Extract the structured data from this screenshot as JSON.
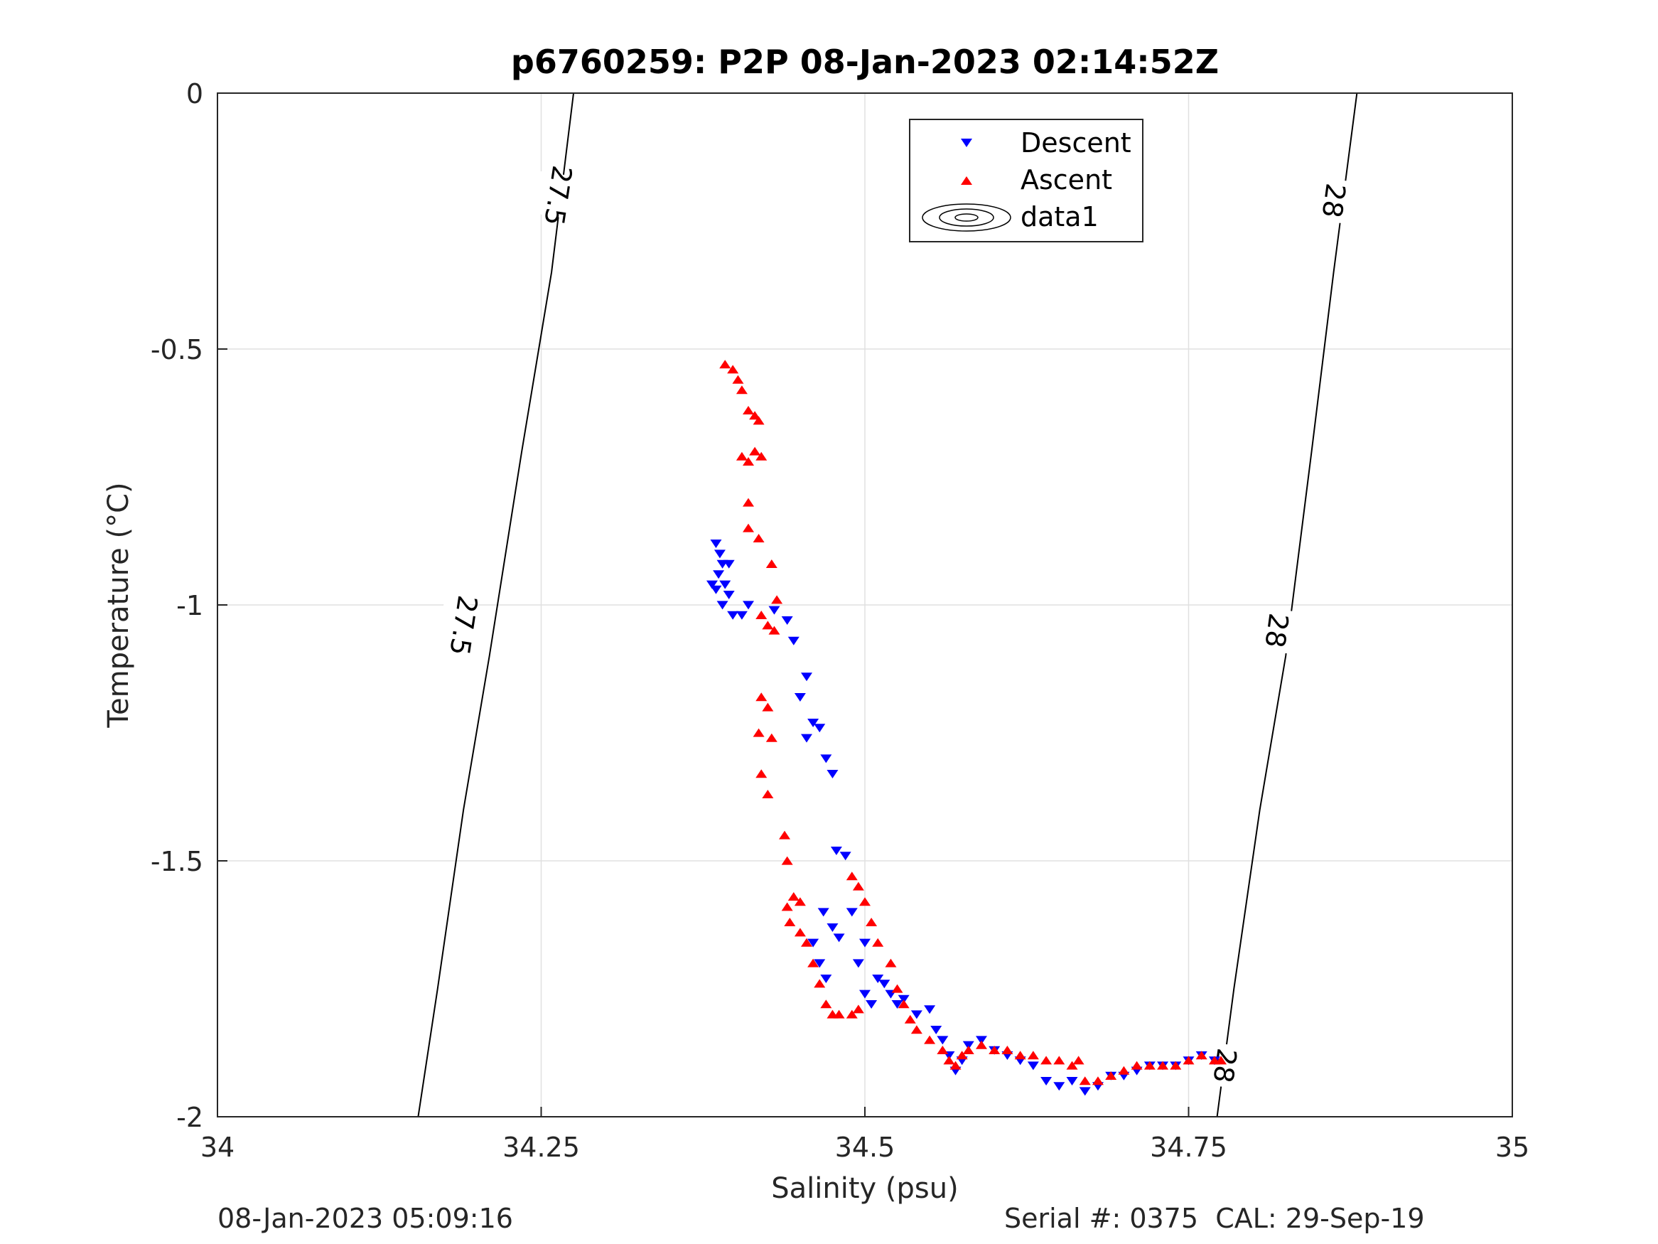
{
  "footer": {
    "left": "08-Jan-2023 05:09:16",
    "right": "Serial #: 0375  CAL: 29-Sep-19"
  },
  "chart_data": {
    "type": "scatter",
    "title": "p6760259: P2P 08-Jan-2023 02:14:52Z",
    "xlabel": "Salinity (psu)",
    "ylabel": "Temperature (°C)",
    "xlim": [
      34,
      35
    ],
    "ylim": [
      -2,
      0
    ],
    "xticks": [
      "34",
      "34.25",
      "34.5",
      "34.75",
      "35"
    ],
    "yticks": [
      "0",
      "-0.5",
      "-1",
      "-1.5",
      "-2"
    ],
    "grid": true,
    "legend_position": "top-right",
    "legend": [
      "Descent",
      "Ascent",
      "data1"
    ],
    "colors": {
      "descent": "#0000ff",
      "ascent": "#ff0000",
      "contour": "#000000",
      "axis": "#262626",
      "grid": "#e0e0e0"
    },
    "contours": [
      {
        "label": "27.5",
        "points": [
          [
            34.155,
            -2.0
          ],
          [
            34.17,
            -1.75
          ],
          [
            34.19,
            -1.4
          ],
          [
            34.21,
            -1.1
          ],
          [
            34.235,
            -0.7
          ],
          [
            34.258,
            -0.35
          ],
          [
            34.275,
            0.0
          ]
        ],
        "label_positions": [
          [
            34.263,
            -0.2
          ],
          [
            34.19,
            -1.04
          ]
        ]
      },
      {
        "label": "28",
        "points": [
          [
            34.772,
            -2.0
          ],
          [
            34.785,
            -1.75
          ],
          [
            34.805,
            -1.4
          ],
          [
            34.825,
            -1.1
          ],
          [
            34.845,
            -0.7
          ],
          [
            34.862,
            -0.35
          ],
          [
            34.88,
            0.0
          ]
        ],
        "label_positions": [
          [
            34.862,
            -0.21
          ],
          [
            34.818,
            -1.05
          ],
          [
            34.778,
            -1.9
          ]
        ]
      }
    ],
    "series": [
      {
        "name": "Descent",
        "marker": "triangle-down",
        "points": [
          [
            34.385,
            -0.88
          ],
          [
            34.388,
            -0.9
          ],
          [
            34.39,
            -0.92
          ],
          [
            34.387,
            -0.94
          ],
          [
            34.382,
            -0.96
          ],
          [
            34.392,
            -0.96
          ],
          [
            34.395,
            -0.98
          ],
          [
            34.39,
            -1.0
          ],
          [
            34.385,
            -0.97
          ],
          [
            34.395,
            -0.92
          ],
          [
            34.398,
            -1.02
          ],
          [
            34.405,
            -1.02
          ],
          [
            34.41,
            -1.0
          ],
          [
            34.43,
            -1.01
          ],
          [
            34.44,
            -1.03
          ],
          [
            34.445,
            -1.07
          ],
          [
            34.455,
            -1.14
          ],
          [
            34.45,
            -1.18
          ],
          [
            34.46,
            -1.23
          ],
          [
            34.455,
            -1.26
          ],
          [
            34.465,
            -1.24
          ],
          [
            34.47,
            -1.3
          ],
          [
            34.475,
            -1.33
          ],
          [
            34.478,
            -1.48
          ],
          [
            34.485,
            -1.49
          ],
          [
            34.468,
            -1.6
          ],
          [
            34.475,
            -1.63
          ],
          [
            34.46,
            -1.66
          ],
          [
            34.465,
            -1.7
          ],
          [
            34.47,
            -1.73
          ],
          [
            34.48,
            -1.65
          ],
          [
            34.49,
            -1.6
          ],
          [
            34.5,
            -1.66
          ],
          [
            34.495,
            -1.7
          ],
          [
            34.5,
            -1.76
          ],
          [
            34.505,
            -1.78
          ],
          [
            34.51,
            -1.73
          ],
          [
            34.515,
            -1.74
          ],
          [
            34.52,
            -1.76
          ],
          [
            34.525,
            -1.78
          ],
          [
            34.53,
            -1.77
          ],
          [
            34.54,
            -1.8
          ],
          [
            34.55,
            -1.79
          ],
          [
            34.555,
            -1.83
          ],
          [
            34.56,
            -1.85
          ],
          [
            34.565,
            -1.88
          ],
          [
            34.57,
            -1.91
          ],
          [
            34.575,
            -1.89
          ],
          [
            34.58,
            -1.86
          ],
          [
            34.59,
            -1.85
          ],
          [
            34.6,
            -1.87
          ],
          [
            34.61,
            -1.88
          ],
          [
            34.62,
            -1.89
          ],
          [
            34.63,
            -1.9
          ],
          [
            34.64,
            -1.93
          ],
          [
            34.65,
            -1.94
          ],
          [
            34.66,
            -1.93
          ],
          [
            34.67,
            -1.95
          ],
          [
            34.68,
            -1.94
          ],
          [
            34.69,
            -1.92
          ],
          [
            34.7,
            -1.92
          ],
          [
            34.71,
            -1.91
          ],
          [
            34.72,
            -1.9
          ],
          [
            34.73,
            -1.9
          ],
          [
            34.74,
            -1.9
          ],
          [
            34.75,
            -1.89
          ],
          [
            34.76,
            -1.88
          ],
          [
            34.77,
            -1.89
          ]
        ]
      },
      {
        "name": "Ascent",
        "marker": "triangle-up",
        "points": [
          [
            34.392,
            -0.53
          ],
          [
            34.398,
            -0.54
          ],
          [
            34.402,
            -0.56
          ],
          [
            34.405,
            -0.58
          ],
          [
            34.41,
            -0.62
          ],
          [
            34.415,
            -0.63
          ],
          [
            34.418,
            -0.64
          ],
          [
            34.405,
            -0.71
          ],
          [
            34.41,
            -0.72
          ],
          [
            34.415,
            -0.7
          ],
          [
            34.42,
            -0.71
          ],
          [
            34.41,
            -0.8
          ],
          [
            34.41,
            -0.85
          ],
          [
            34.418,
            -0.87
          ],
          [
            34.428,
            -0.92
          ],
          [
            34.432,
            -0.99
          ],
          [
            34.42,
            -1.02
          ],
          [
            34.425,
            -1.04
          ],
          [
            34.43,
            -1.05
          ],
          [
            34.42,
            -1.18
          ],
          [
            34.425,
            -1.2
          ],
          [
            34.418,
            -1.25
          ],
          [
            34.428,
            -1.26
          ],
          [
            34.42,
            -1.33
          ],
          [
            34.425,
            -1.37
          ],
          [
            34.438,
            -1.45
          ],
          [
            34.44,
            -1.5
          ],
          [
            34.445,
            -1.57
          ],
          [
            34.45,
            -1.58
          ],
          [
            34.44,
            -1.59
          ],
          [
            34.442,
            -1.62
          ],
          [
            34.45,
            -1.64
          ],
          [
            34.455,
            -1.66
          ],
          [
            34.46,
            -1.7
          ],
          [
            34.465,
            -1.74
          ],
          [
            34.47,
            -1.78
          ],
          [
            34.475,
            -1.8
          ],
          [
            34.48,
            -1.8
          ],
          [
            34.49,
            -1.8
          ],
          [
            34.495,
            -1.79
          ],
          [
            34.49,
            -1.53
          ],
          [
            34.495,
            -1.55
          ],
          [
            34.5,
            -1.58
          ],
          [
            34.505,
            -1.62
          ],
          [
            34.51,
            -1.66
          ],
          [
            34.52,
            -1.7
          ],
          [
            34.525,
            -1.75
          ],
          [
            34.53,
            -1.78
          ],
          [
            34.535,
            -1.81
          ],
          [
            34.54,
            -1.83
          ],
          [
            34.55,
            -1.85
          ],
          [
            34.56,
            -1.87
          ],
          [
            34.565,
            -1.89
          ],
          [
            34.57,
            -1.9
          ],
          [
            34.575,
            -1.88
          ],
          [
            34.58,
            -1.87
          ],
          [
            34.59,
            -1.86
          ],
          [
            34.6,
            -1.87
          ],
          [
            34.61,
            -1.87
          ],
          [
            34.62,
            -1.88
          ],
          [
            34.63,
            -1.88
          ],
          [
            34.64,
            -1.89
          ],
          [
            34.65,
            -1.89
          ],
          [
            34.66,
            -1.9
          ],
          [
            34.665,
            -1.89
          ],
          [
            34.67,
            -1.93
          ],
          [
            34.68,
            -1.93
          ],
          [
            34.69,
            -1.92
          ],
          [
            34.7,
            -1.91
          ],
          [
            34.71,
            -1.9
          ],
          [
            34.72,
            -1.9
          ],
          [
            34.73,
            -1.9
          ],
          [
            34.74,
            -1.9
          ],
          [
            34.75,
            -1.89
          ],
          [
            34.76,
            -1.88
          ],
          [
            34.77,
            -1.89
          ],
          [
            34.775,
            -1.89
          ]
        ]
      }
    ]
  }
}
